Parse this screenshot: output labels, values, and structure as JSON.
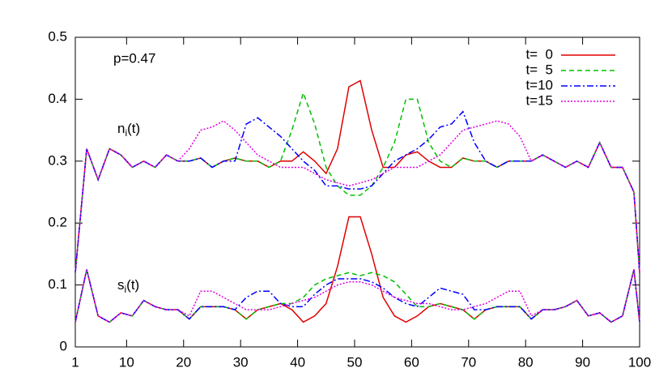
{
  "chart_data": {
    "type": "line",
    "annotations": [
      {
        "text": "p=0.47"
      },
      {
        "base": "n",
        "sub": "i",
        "rest": "(t)"
      },
      {
        "base": "s",
        "sub": "i",
        "rest": "(t)"
      }
    ],
    "x": [
      1,
      3,
      5,
      7,
      9,
      11,
      13,
      15,
      17,
      19,
      21,
      23,
      25,
      27,
      29,
      31,
      33,
      35,
      37,
      39,
      41,
      43,
      45,
      47,
      49,
      51,
      53,
      55,
      57,
      59,
      61,
      63,
      65,
      67,
      69,
      71,
      73,
      75,
      77,
      79,
      81,
      83,
      85,
      87,
      89,
      91,
      93,
      95,
      97,
      99,
      100
    ],
    "xlim": [
      1,
      100
    ],
    "xticks": [
      1,
      10,
      20,
      30,
      40,
      50,
      60,
      70,
      80,
      90,
      100
    ],
    "ylim": [
      0,
      0.5
    ],
    "yticks": [
      0,
      0.1,
      0.2,
      0.3,
      0.4,
      0.5
    ],
    "legend": "top-right",
    "series": [
      {
        "name": "t=  0",
        "color": "#e00000",
        "dash": "solid",
        "values": [
          0.12,
          0.32,
          0.27,
          0.32,
          0.31,
          0.29,
          0.3,
          0.29,
          0.31,
          0.3,
          0.3,
          0.305,
          0.29,
          0.3,
          0.305,
          0.3,
          0.3,
          0.29,
          0.3,
          0.3,
          0.315,
          0.3,
          0.28,
          0.32,
          0.42,
          0.43,
          0.35,
          0.29,
          0.29,
          0.31,
          0.315,
          0.3,
          0.29,
          0.29,
          0.305,
          0.3,
          0.3,
          0.29,
          0.3,
          0.3,
          0.3,
          0.31,
          0.3,
          0.29,
          0.3,
          0.29,
          0.33,
          0.29,
          0.29,
          0.25,
          0.12
        ],
        "s_values": [
          0.04,
          0.125,
          0.05,
          0.04,
          0.055,
          0.05,
          0.075,
          0.065,
          0.06,
          0.06,
          0.045,
          0.065,
          0.065,
          0.065,
          0.06,
          0.045,
          0.06,
          0.065,
          0.07,
          0.06,
          0.04,
          0.05,
          0.07,
          0.13,
          0.21,
          0.21,
          0.15,
          0.08,
          0.05,
          0.04,
          0.05,
          0.065,
          0.07,
          0.065,
          0.06,
          0.045,
          0.06,
          0.065,
          0.065,
          0.065,
          0.045,
          0.06,
          0.06,
          0.065,
          0.075,
          0.05,
          0.055,
          0.04,
          0.05,
          0.125,
          0.04
        ]
      },
      {
        "name": "t=  5",
        "color": "#00c000",
        "dash": "dashed",
        "values": [
          0.12,
          0.32,
          0.27,
          0.32,
          0.31,
          0.29,
          0.3,
          0.29,
          0.31,
          0.3,
          0.3,
          0.305,
          0.29,
          0.3,
          0.305,
          0.3,
          0.3,
          0.29,
          0.3,
          0.35,
          0.41,
          0.36,
          0.29,
          0.26,
          0.245,
          0.245,
          0.26,
          0.29,
          0.33,
          0.4,
          0.4,
          0.33,
          0.3,
          0.29,
          0.305,
          0.3,
          0.3,
          0.29,
          0.3,
          0.3,
          0.3,
          0.31,
          0.3,
          0.29,
          0.3,
          0.29,
          0.33,
          0.29,
          0.29,
          0.25,
          0.12
        ],
        "s_values": [
          0.04,
          0.125,
          0.05,
          0.04,
          0.055,
          0.05,
          0.075,
          0.065,
          0.06,
          0.06,
          0.045,
          0.065,
          0.065,
          0.065,
          0.06,
          0.045,
          0.06,
          0.065,
          0.07,
          0.07,
          0.08,
          0.1,
          0.11,
          0.115,
          0.12,
          0.115,
          0.12,
          0.115,
          0.105,
          0.085,
          0.065,
          0.065,
          0.07,
          0.065,
          0.06,
          0.045,
          0.06,
          0.065,
          0.065,
          0.065,
          0.045,
          0.06,
          0.06,
          0.065,
          0.075,
          0.05,
          0.055,
          0.04,
          0.05,
          0.125,
          0.04
        ]
      },
      {
        "name": "t=10",
        "color": "#0000ff",
        "dash": "dashdot",
        "values": [
          0.12,
          0.32,
          0.27,
          0.32,
          0.31,
          0.29,
          0.3,
          0.29,
          0.31,
          0.3,
          0.3,
          0.305,
          0.29,
          0.3,
          0.3,
          0.36,
          0.37,
          0.355,
          0.34,
          0.32,
          0.3,
          0.285,
          0.26,
          0.26,
          0.255,
          0.255,
          0.26,
          0.28,
          0.3,
          0.31,
          0.32,
          0.335,
          0.355,
          0.36,
          0.38,
          0.33,
          0.3,
          0.29,
          0.3,
          0.3,
          0.3,
          0.31,
          0.3,
          0.29,
          0.3,
          0.29,
          0.33,
          0.29,
          0.29,
          0.25,
          0.12
        ],
        "s_values": [
          0.04,
          0.125,
          0.05,
          0.04,
          0.055,
          0.05,
          0.075,
          0.065,
          0.06,
          0.06,
          0.045,
          0.065,
          0.065,
          0.065,
          0.06,
          0.08,
          0.09,
          0.09,
          0.07,
          0.065,
          0.065,
          0.085,
          0.1,
          0.11,
          0.11,
          0.11,
          0.105,
          0.095,
          0.08,
          0.07,
          0.065,
          0.08,
          0.095,
          0.09,
          0.085,
          0.06,
          0.06,
          0.065,
          0.065,
          0.065,
          0.045,
          0.06,
          0.06,
          0.065,
          0.075,
          0.05,
          0.055,
          0.04,
          0.05,
          0.125,
          0.04
        ]
      },
      {
        "name": "t=15",
        "color": "#e000e0",
        "dash": "dotted",
        "values": [
          0.12,
          0.32,
          0.27,
          0.32,
          0.31,
          0.29,
          0.3,
          0.29,
          0.31,
          0.3,
          0.32,
          0.35,
          0.355,
          0.365,
          0.35,
          0.33,
          0.31,
          0.3,
          0.29,
          0.29,
          0.29,
          0.28,
          0.27,
          0.265,
          0.26,
          0.265,
          0.27,
          0.28,
          0.29,
          0.29,
          0.29,
          0.3,
          0.31,
          0.33,
          0.35,
          0.355,
          0.36,
          0.365,
          0.36,
          0.34,
          0.3,
          0.31,
          0.3,
          0.29,
          0.3,
          0.29,
          0.33,
          0.29,
          0.29,
          0.25,
          0.12
        ],
        "s_values": [
          0.04,
          0.125,
          0.05,
          0.04,
          0.055,
          0.05,
          0.075,
          0.065,
          0.06,
          0.06,
          0.05,
          0.09,
          0.09,
          0.08,
          0.07,
          0.06,
          0.06,
          0.06,
          0.065,
          0.07,
          0.075,
          0.08,
          0.09,
          0.1,
          0.105,
          0.105,
          0.1,
          0.09,
          0.08,
          0.075,
          0.07,
          0.07,
          0.065,
          0.06,
          0.06,
          0.065,
          0.07,
          0.08,
          0.09,
          0.09,
          0.05,
          0.06,
          0.06,
          0.065,
          0.075,
          0.05,
          0.055,
          0.04,
          0.05,
          0.125,
          0.04
        ]
      }
    ]
  }
}
